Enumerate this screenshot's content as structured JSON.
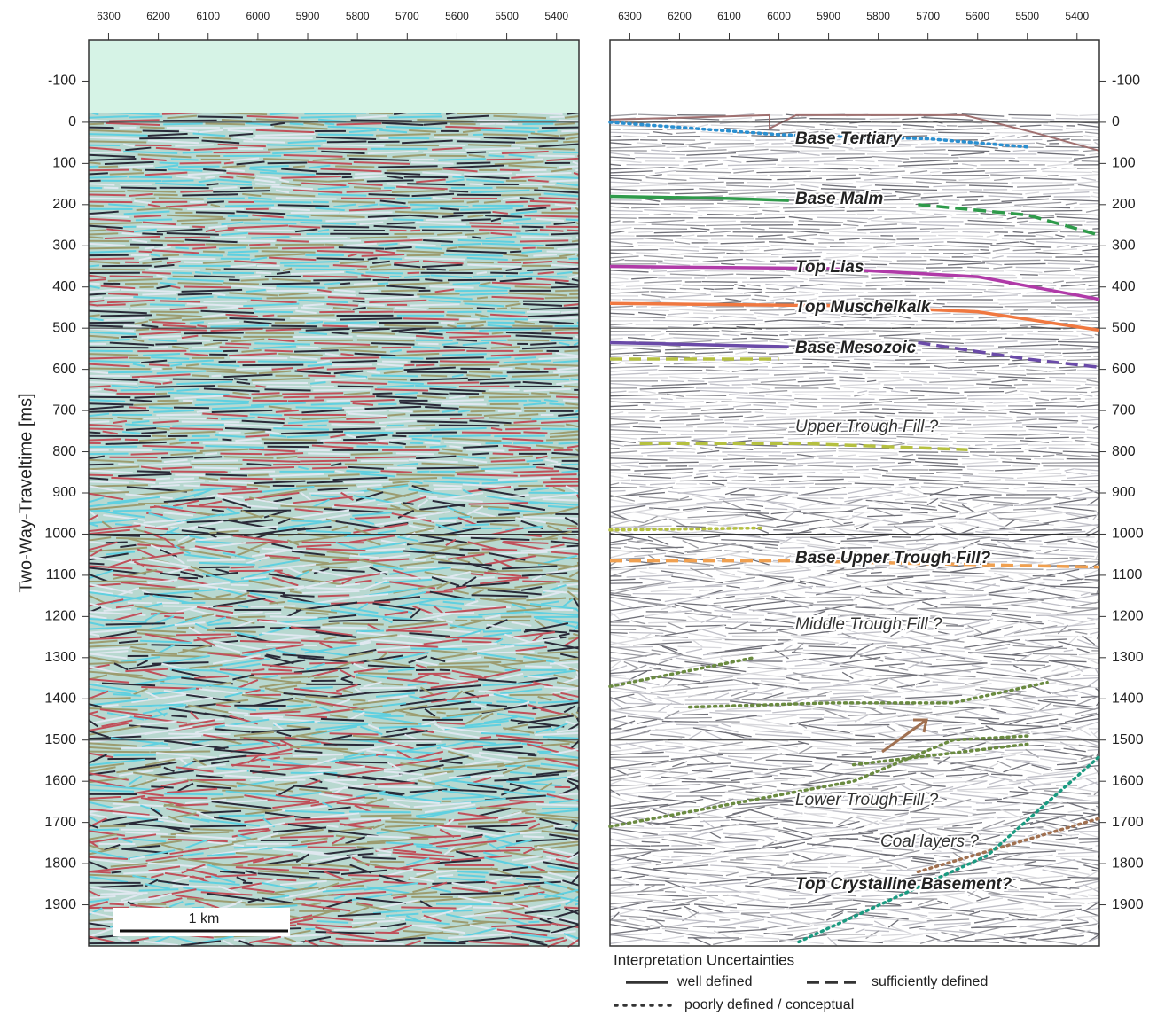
{
  "chart_data": {
    "type": "seismic",
    "ylabel": "Two-Way-Traveltime [ms]",
    "xlim": [
      6340,
      5355
    ],
    "xticks": [
      6300,
      6200,
      6100,
      6000,
      5900,
      5800,
      5700,
      5600,
      5500,
      5400
    ],
    "ylim": [
      -200,
      2000
    ],
    "yticks": [
      -100,
      0,
      100,
      200,
      300,
      400,
      500,
      600,
      700,
      800,
      900,
      1000,
      1100,
      1200,
      1300,
      1400,
      1500,
      1600,
      1700,
      1800,
      1900
    ],
    "scale_bar": "1 km",
    "horizons": [
      {
        "label": "Base Tertiary",
        "color": "#2a8fd0",
        "segments": [
          {
            "style": "dotted",
            "x": [
              6340,
              6000,
              5700,
              5500
            ],
            "values": [
              0,
              30,
              40,
              60
            ]
          }
        ]
      },
      {
        "label": "Base Malm",
        "color": "#2e9a4a",
        "segments": [
          {
            "style": "solid",
            "x": [
              6340,
              6100,
              5980
            ],
            "values": [
              180,
              185,
              190
            ]
          },
          {
            "style": "dashed",
            "x": [
              5720,
              5500,
              5355
            ],
            "values": [
              200,
              225,
              274
            ]
          }
        ]
      },
      {
        "label": "Top Lias",
        "color": "#b03aa8",
        "segments": [
          {
            "style": "solid",
            "x": [
              6340,
              5900,
              5600,
              5355
            ],
            "values": [
              350,
              355,
              375,
              430
            ]
          }
        ]
      },
      {
        "label": "Top Muschelkalk",
        "color": "#f07840",
        "segments": [
          {
            "style": "solid",
            "x": [
              6340,
              5900,
              5600,
              5355
            ],
            "values": [
              440,
              445,
              460,
              505
            ]
          }
        ]
      },
      {
        "label": "Base Mesozoic",
        "color": "#6a4aa8",
        "segments": [
          {
            "style": "solid",
            "x": [
              6340,
              5980
            ],
            "values": [
              535,
              545
            ]
          },
          {
            "style": "dashed",
            "x": [
              5720,
              5500,
              5355
            ],
            "values": [
              535,
              575,
              595
            ]
          }
        ]
      },
      {
        "label": "Base Upper Trough Fill?",
        "color": "#f0a050",
        "segments": [
          {
            "style": "dashed",
            "x": [
              6340,
              5980,
              5355
            ],
            "values": [
              1065,
              1065,
              1080
            ]
          }
        ]
      },
      {
        "label": "Top Crystalline Basement?",
        "color": "#a07050",
        "segments": [
          {
            "style": "dotted",
            "x": [
              5720,
              5355
            ],
            "values": [
              1820,
              1690
            ]
          }
        ]
      }
    ],
    "other_lines": [
      {
        "color": "#b5c040",
        "style": "dashed",
        "x": [
          6340,
          6000
        ],
        "values": [
          575,
          575
        ]
      },
      {
        "color": "#b5c040",
        "style": "dashed",
        "x": [
          6280,
          5950,
          5620
        ],
        "values": [
          780,
          780,
          795
        ]
      },
      {
        "color": "#b5c040",
        "style": "dotted",
        "x": [
          6340,
          6030
        ],
        "values": [
          990,
          985
        ]
      },
      {
        "color": "#6a8a40",
        "style": "dotted",
        "x": [
          6340,
          6050
        ],
        "values": [
          1370,
          1300
        ]
      },
      {
        "color": "#6a8a40",
        "style": "dotted",
        "x": [
          6180,
          5900,
          5650,
          5460
        ],
        "values": [
          1420,
          1410,
          1410,
          1360
        ]
      },
      {
        "color": "#6a8a40",
        "style": "dotted",
        "x": [
          6340,
          5850,
          5650,
          5500
        ],
        "values": [
          1710,
          1600,
          1500,
          1490
        ]
      },
      {
        "color": "#6a8a40",
        "style": "dotted",
        "x": [
          5850,
          5500
        ],
        "values": [
          1560,
          1510
        ]
      },
      {
        "color": "#1a9a80",
        "style": "dotted",
        "x": [
          5960,
          5580,
          5355
        ],
        "values": [
          1990,
          1780,
          1540
        ]
      }
    ],
    "labels": [
      "Upper Trough Fill ?",
      "Middle Trough Fill ?",
      "Lower Trough Fill ?",
      "Coal layers ?"
    ],
    "legend_title": "Interpretation Uncertainties",
    "legend": [
      "well defined",
      "sufficiently defined",
      "poorly defined / conceptual"
    ]
  }
}
